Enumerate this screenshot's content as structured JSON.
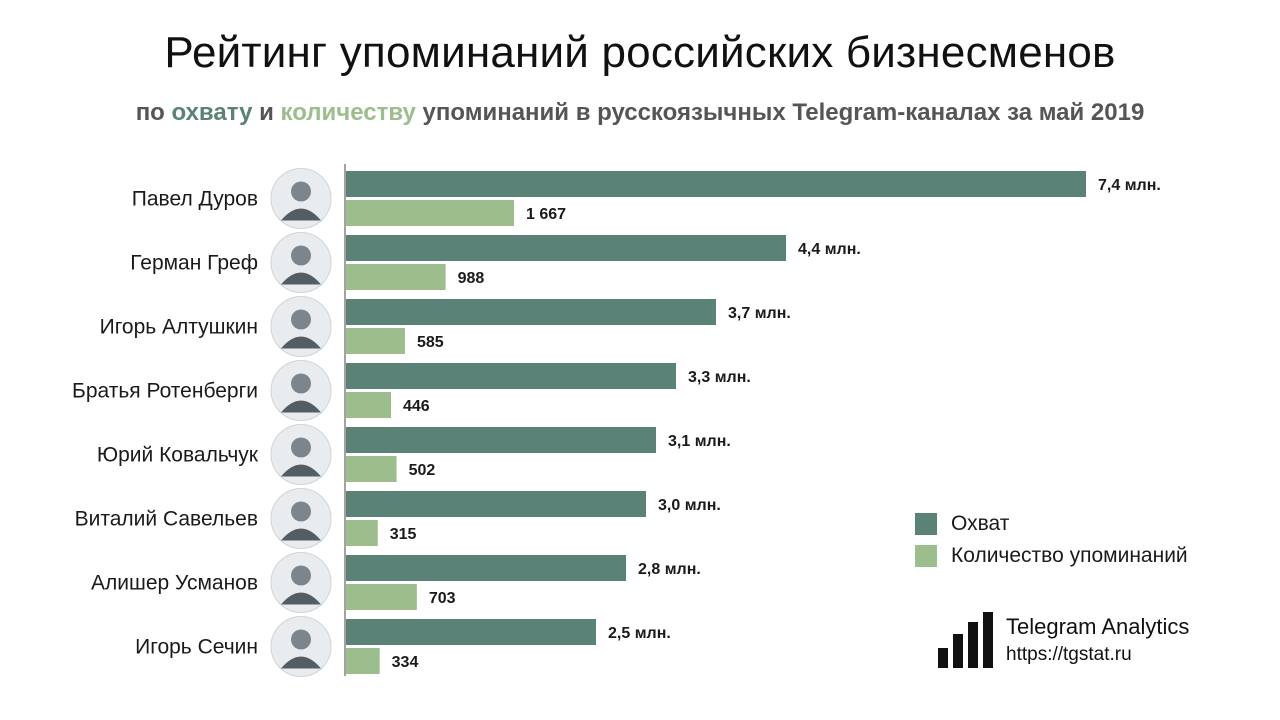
{
  "header": {
    "title": "Рейтинг упоминаний российских бизнесменов",
    "subtitle": {
      "part1": "по ",
      "reach_word": "охвату",
      "part2": " и ",
      "count_word": "количеству",
      "part3": " упоминаний в русскоязычных Telegram-каналах за май 2019"
    }
  },
  "colors": {
    "reach": "#5a8277",
    "count": "#9cbd8c"
  },
  "chart_data": {
    "type": "bar",
    "orientation": "horizontal",
    "categories": [
      "Павел Дуров",
      "Герман Греф",
      "Игорь Алтушкин",
      "Братья Ротенберги",
      "Юрий Ковальчук",
      "Виталий Савельев",
      "Алишер Усманов",
      "Игорь Сечин"
    ],
    "series": [
      {
        "name": "Охват",
        "values": [
          7.4,
          4.4,
          3.7,
          3.3,
          3.1,
          3.0,
          2.8,
          2.5
        ],
        "labels": [
          "7,4 млн.",
          "4,4 млн.",
          "3,7 млн.",
          "3,3 млн.",
          "3,1 млн.",
          "3,0 млн.",
          "2,8 млн.",
          "2,5 млн."
        ]
      },
      {
        "name": "Количество упоминаний",
        "values": [
          1667,
          988,
          585,
          446,
          502,
          315,
          703,
          334
        ],
        "labels": [
          "1 667",
          "988",
          "585",
          "446",
          "502",
          "315",
          "703",
          "334"
        ]
      }
    ],
    "legend_position": "right",
    "grid": false,
    "avatars": [
      "avatar-icon",
      "avatar-icon",
      "avatar-icon",
      "avatar-icon",
      "avatar-icon",
      "avatar-icon",
      "avatar-icon",
      "avatar-icon"
    ]
  },
  "branding": {
    "name": "Telegram Analytics",
    "url": "https://tgstat.ru",
    "logo_icon": "bar-chart-icon"
  }
}
